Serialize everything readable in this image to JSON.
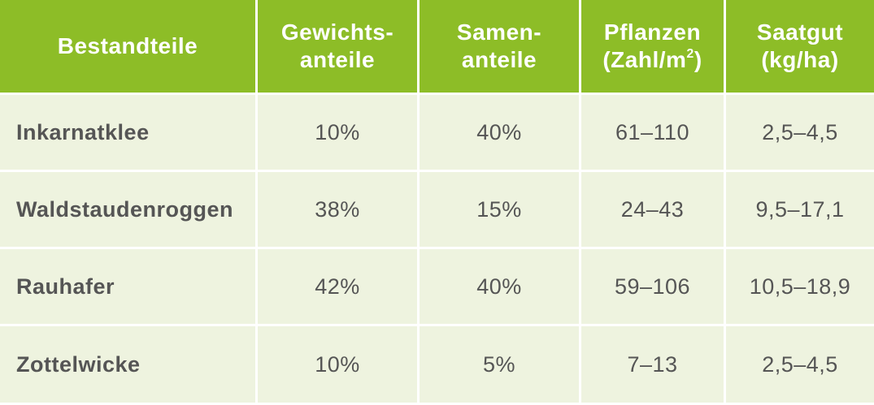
{
  "table": {
    "header": {
      "col1": {
        "line1": "Bestandteile"
      },
      "col2": {
        "line1": "Gewichts-",
        "line2": "anteile"
      },
      "col3": {
        "line1": "Samen-",
        "line2": "anteile"
      },
      "col4": {
        "line1": "Pflanzen",
        "line2_prefix": "(Zahl/m",
        "line2_sup": "2",
        "line2_suffix": ")"
      },
      "col5": {
        "line1": "Saatgut",
        "line2": "(kg/ha)"
      }
    },
    "rows": [
      {
        "name": "Inkarnatklee",
        "weight": "10%",
        "seed": "40%",
        "plants": "61–110",
        "seedkg": "2,5–4,5"
      },
      {
        "name": "Waldstaudenroggen",
        "weight": "38%",
        "seed": "15%",
        "plants": "24–43",
        "seedkg": "9,5–17,1"
      },
      {
        "name": "Rauhafer",
        "weight": "42%",
        "seed": "40%",
        "plants": "59–106",
        "seedkg": "10,5–18,9"
      },
      {
        "name": "Zottelwicke",
        "weight": "10%",
        "seed": "5%",
        "plants": "7–13",
        "seedkg": "2,5–4,5"
      }
    ]
  },
  "colors": {
    "header_bg": "#8dbd27",
    "row_bg": "#eef3df",
    "text": "#555555"
  }
}
